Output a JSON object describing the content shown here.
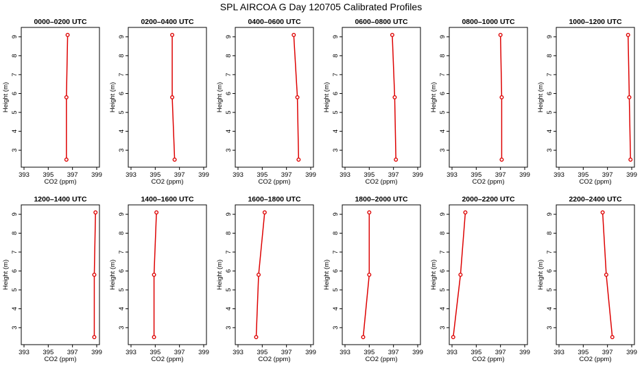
{
  "figure_title": "SPL AIRCOA G  Day 120705  Calibrated Profiles",
  "colors": {
    "series": "#dd0000",
    "axis": "#000000",
    "background": "#ffffff"
  },
  "chart_data": [
    {
      "type": "line",
      "title": "0000–0200 UTC",
      "xlabel": "CO2 (ppm)",
      "ylabel": "Height (m)",
      "xlim": [
        393,
        399
      ],
      "ylim": [
        2.5,
        9.1
      ],
      "xticks": [
        "393",
        "395",
        "397",
        "399"
      ],
      "yticks": [
        "3",
        "4",
        "5",
        "6",
        "7",
        "8",
        "9"
      ],
      "grid": false,
      "series": [
        {
          "x": [
            396.6,
            396.5,
            396.5
          ],
          "y": [
            9.1,
            5.8,
            2.5
          ]
        }
      ]
    },
    {
      "type": "line",
      "title": "0200–0400 UTC",
      "xlabel": "CO2 (ppm)",
      "ylabel": "Height (m)",
      "xlim": [
        393,
        399
      ],
      "ylim": [
        2.5,
        9.1
      ],
      "xticks": [
        "393",
        "395",
        "397",
        "399"
      ],
      "yticks": [
        "3",
        "4",
        "5",
        "6",
        "7",
        "8",
        "9"
      ],
      "grid": false,
      "series": [
        {
          "x": [
            396.4,
            396.4,
            396.6
          ],
          "y": [
            9.1,
            5.8,
            2.5
          ]
        }
      ]
    },
    {
      "type": "line",
      "title": "0400–0600 UTC",
      "xlabel": "CO2 (ppm)",
      "ylabel": "Height (m)",
      "xlim": [
        393,
        399
      ],
      "ylim": [
        2.5,
        9.1
      ],
      "xticks": [
        "393",
        "395",
        "397",
        "399"
      ],
      "yticks": [
        "3",
        "4",
        "5",
        "6",
        "7",
        "8",
        "9"
      ],
      "grid": false,
      "series": [
        {
          "x": [
            397.6,
            397.9,
            398.0
          ],
          "y": [
            9.1,
            5.8,
            2.5
          ]
        }
      ]
    },
    {
      "type": "line",
      "title": "0600–0800 UTC",
      "xlabel": "CO2 (ppm)",
      "ylabel": "Height (m)",
      "xlim": [
        393,
        399
      ],
      "ylim": [
        2.5,
        9.1
      ],
      "xticks": [
        "393",
        "395",
        "397",
        "399"
      ],
      "yticks": [
        "3",
        "4",
        "5",
        "6",
        "7",
        "8",
        "9"
      ],
      "grid": false,
      "series": [
        {
          "x": [
            396.9,
            397.1,
            397.2
          ],
          "y": [
            9.1,
            5.8,
            2.5
          ]
        }
      ]
    },
    {
      "type": "line",
      "title": "0800–1000 UTC",
      "xlabel": "CO2 (ppm)",
      "ylabel": "Height (m)",
      "xlim": [
        393,
        399
      ],
      "ylim": [
        2.5,
        9.1
      ],
      "xticks": [
        "393",
        "395",
        "397",
        "399"
      ],
      "yticks": [
        "3",
        "4",
        "5",
        "6",
        "7",
        "8",
        "9"
      ],
      "grid": false,
      "series": [
        {
          "x": [
            397.0,
            397.1,
            397.1
          ],
          "y": [
            9.1,
            5.8,
            2.5
          ]
        }
      ]
    },
    {
      "type": "line",
      "title": "1000–1200 UTC",
      "xlabel": "CO2 (ppm)",
      "ylabel": "Height (m)",
      "xlim": [
        393,
        399
      ],
      "ylim": [
        2.5,
        9.1
      ],
      "xticks": [
        "393",
        "395",
        "397",
        "399"
      ],
      "yticks": [
        "3",
        "4",
        "5",
        "6",
        "7",
        "8",
        "9"
      ],
      "grid": false,
      "series": [
        {
          "x": [
            398.7,
            398.8,
            398.9
          ],
          "y": [
            9.1,
            5.8,
            2.5
          ]
        }
      ]
    },
    {
      "type": "line",
      "title": "1200–1400 UTC",
      "xlabel": "CO2 (ppm)",
      "ylabel": "Height (m)",
      "xlim": [
        393,
        399
      ],
      "ylim": [
        2.5,
        9.1
      ],
      "xticks": [
        "393",
        "395",
        "397",
        "399"
      ],
      "yticks": [
        "3",
        "4",
        "5",
        "6",
        "7",
        "8",
        "9"
      ],
      "grid": false,
      "series": [
        {
          "x": [
            398.9,
            398.8,
            398.8
          ],
          "y": [
            9.1,
            5.8,
            2.5
          ]
        }
      ]
    },
    {
      "type": "line",
      "title": "1400–1600 UTC",
      "xlabel": "CO2 (ppm)",
      "ylabel": "Height (m)",
      "xlim": [
        393,
        399
      ],
      "ylim": [
        2.5,
        9.1
      ],
      "xticks": [
        "393",
        "395",
        "397",
        "399"
      ],
      "yticks": [
        "3",
        "4",
        "5",
        "6",
        "7",
        "8",
        "9"
      ],
      "grid": false,
      "series": [
        {
          "x": [
            395.1,
            394.9,
            394.9
          ],
          "y": [
            9.1,
            5.8,
            2.5
          ]
        }
      ]
    },
    {
      "type": "line",
      "title": "1600–1800 UTC",
      "xlabel": "CO2 (ppm)",
      "ylabel": "Height (m)",
      "xlim": [
        393,
        399
      ],
      "ylim": [
        2.5,
        9.1
      ],
      "xticks": [
        "393",
        "395",
        "397",
        "399"
      ],
      "yticks": [
        "3",
        "4",
        "5",
        "6",
        "7",
        "8",
        "9"
      ],
      "grid": false,
      "series": [
        {
          "x": [
            395.2,
            394.7,
            394.5
          ],
          "y": [
            9.1,
            5.8,
            2.5
          ]
        }
      ]
    },
    {
      "type": "line",
      "title": "1800–2000 UTC",
      "xlabel": "CO2 (ppm)",
      "ylabel": "Height (m)",
      "xlim": [
        393,
        399
      ],
      "ylim": [
        2.5,
        9.1
      ],
      "xticks": [
        "393",
        "395",
        "397",
        "399"
      ],
      "yticks": [
        "3",
        "4",
        "5",
        "6",
        "7",
        "8",
        "9"
      ],
      "grid": false,
      "series": [
        {
          "x": [
            395.0,
            395.0,
            394.5
          ],
          "y": [
            9.1,
            5.8,
            2.5
          ]
        }
      ]
    },
    {
      "type": "line",
      "title": "2000–2200 UTC",
      "xlabel": "CO2 (ppm)",
      "ylabel": "Height (m)",
      "xlim": [
        393,
        399
      ],
      "ylim": [
        2.5,
        9.1
      ],
      "xticks": [
        "393",
        "395",
        "397",
        "399"
      ],
      "yticks": [
        "3",
        "4",
        "5",
        "6",
        "7",
        "8",
        "9"
      ],
      "grid": false,
      "series": [
        {
          "x": [
            394.1,
            393.7,
            393.1
          ],
          "y": [
            9.1,
            5.8,
            2.5
          ]
        }
      ]
    },
    {
      "type": "line",
      "title": "2200–2400 UTC",
      "xlabel": "CO2 (ppm)",
      "ylabel": "Height (m)",
      "xlim": [
        393,
        399
      ],
      "ylim": [
        2.5,
        9.1
      ],
      "xticks": [
        "393",
        "395",
        "397",
        "399"
      ],
      "yticks": [
        "3",
        "4",
        "5",
        "6",
        "7",
        "8",
        "9"
      ],
      "grid": false,
      "series": [
        {
          "x": [
            396.6,
            396.9,
            397.4
          ],
          "y": [
            9.1,
            5.8,
            2.5
          ]
        }
      ]
    }
  ]
}
